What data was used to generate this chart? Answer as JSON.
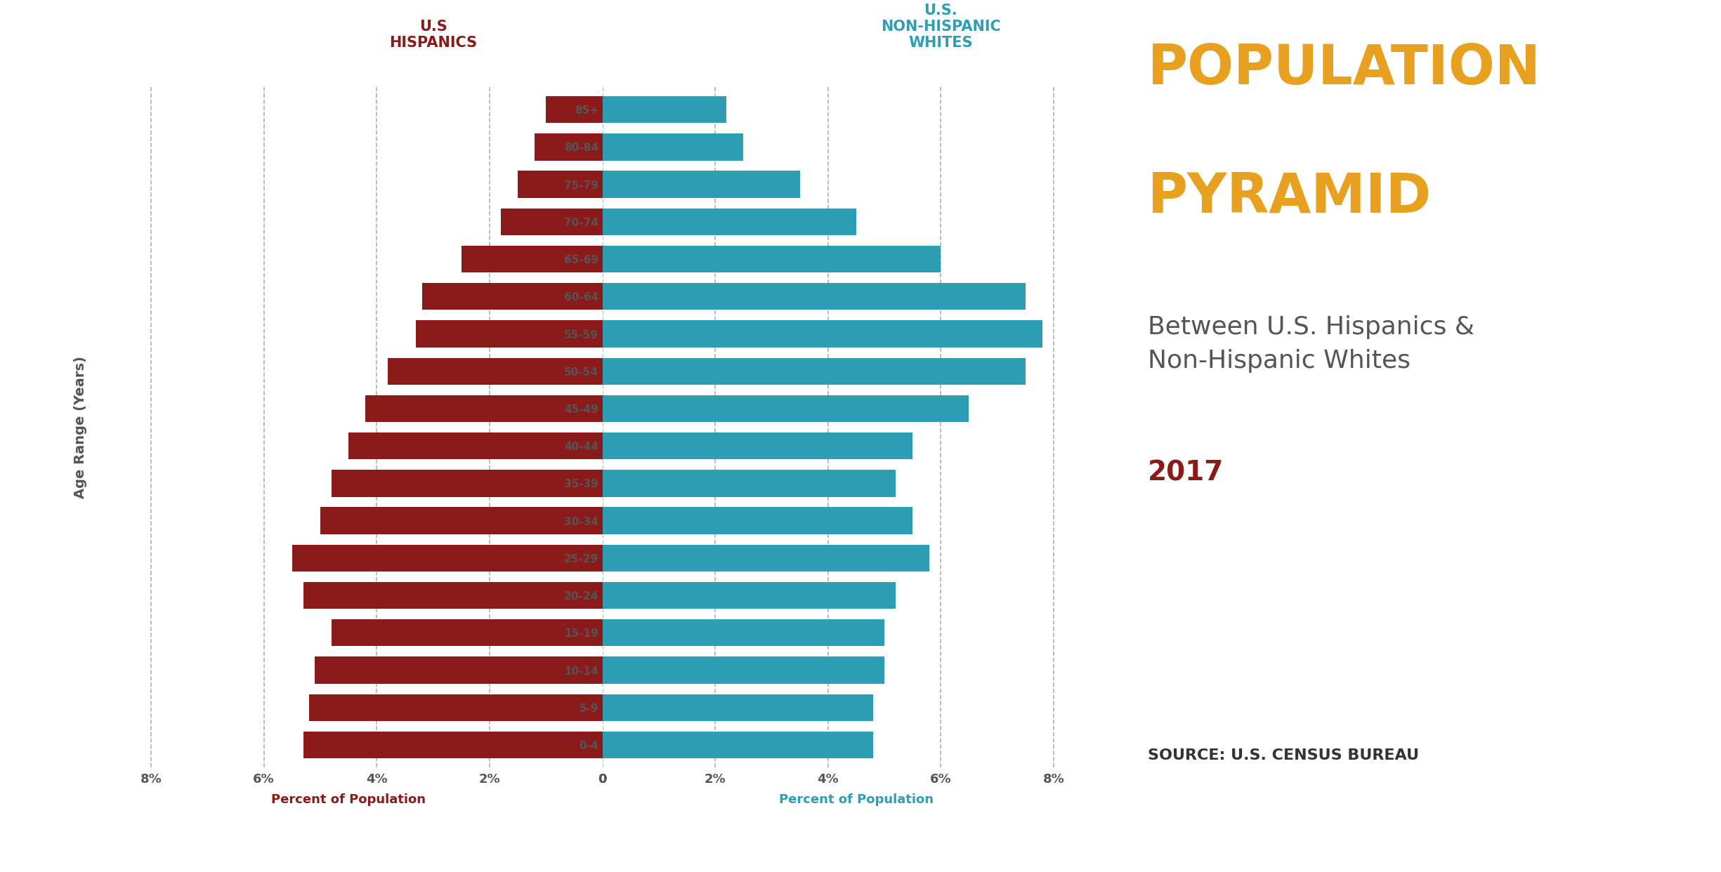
{
  "age_groups": [
    "0-4",
    "5-9",
    "10-14",
    "15-19",
    "20-24",
    "25-29",
    "30-34",
    "35-39",
    "40-44",
    "45-49",
    "50-54",
    "55-59",
    "60-64",
    "65-69",
    "70-74",
    "75-79",
    "80-84",
    "85+"
  ],
  "hispanic": [
    5.3,
    5.2,
    5.1,
    4.8,
    5.3,
    5.5,
    5.0,
    4.8,
    4.5,
    4.2,
    3.8,
    3.3,
    3.2,
    2.5,
    1.8,
    1.5,
    1.2,
    1.0
  ],
  "non_hispanic": [
    4.8,
    4.8,
    5.0,
    5.0,
    5.2,
    5.8,
    5.5,
    5.2,
    5.5,
    6.5,
    7.5,
    7.8,
    7.5,
    6.0,
    4.5,
    3.5,
    2.5,
    2.2
  ],
  "hispanic_color": "#8B1A1A",
  "non_hispanic_color": "#2E9EB5",
  "background_color": "#FFFFFF",
  "title_line1": "POPULATION",
  "title_line2": "PYRAMID",
  "subtitle": "Between U.S. Hispanics &\nNon-Hispanic Whites",
  "year": "2017",
  "source": "SOURCE: U.S. CENSUS BUREAU",
  "left_label_line1": "U.S",
  "left_label_line2": "HISPANICS",
  "right_label_line1": "U.S.",
  "right_label_line2": "NON-HISPANIC",
  "right_label_line3": "WHITES",
  "ylabel": "Age Range (Years)",
  "xlabel_left": "Percent of Population",
  "xlabel_right": "Percent of Population",
  "xlim": 9.0,
  "xticks": [
    0,
    2,
    4,
    6,
    8
  ],
  "xtick_labels_left": [
    "0",
    "2%",
    "4%",
    "6%",
    "8%"
  ],
  "xtick_labels_right": [
    "0",
    "2%",
    "4%",
    "6%",
    "8%"
  ],
  "tick_color": "#555555",
  "label_color": "#555555",
  "title_color": "#E8A020",
  "subtitle_color": "#555555",
  "year_color": "#8B1A1A",
  "source_color": "#333333",
  "grid_color": "#888888",
  "bar_height": 0.72
}
